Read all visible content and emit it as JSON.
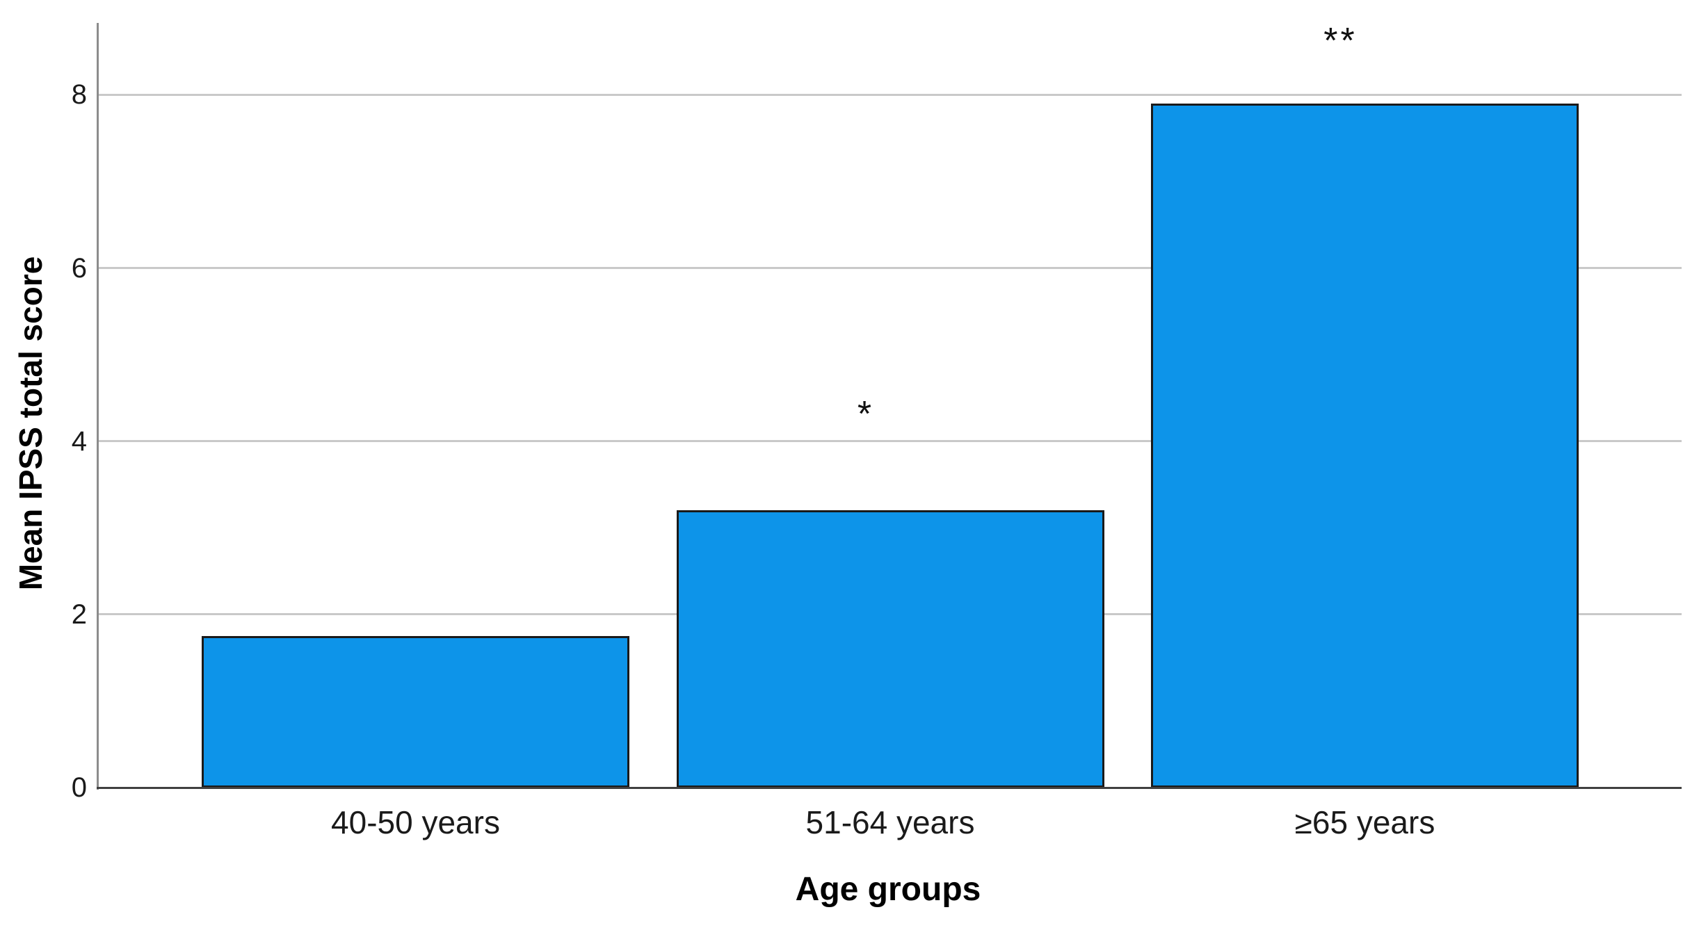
{
  "chart_data": {
    "type": "bar",
    "title": "",
    "xlabel": "Age groups",
    "ylabel": "Mean IPSS total score",
    "categories": [
      "40-50 years",
      "51-64 years",
      "≥65 years"
    ],
    "values": [
      1.75,
      3.2,
      7.9
    ],
    "yticks": [
      0,
      2,
      4,
      6,
      8
    ],
    "ylim": [
      0,
      8.83
    ],
    "grid": "horizontal-only",
    "legend": "none",
    "annotations": [
      {
        "text": "*",
        "category_index": 1,
        "y_value": 4.38
      },
      {
        "text": "**",
        "category_index": 2,
        "y_value": 8.69
      }
    ]
  },
  "colors": {
    "background": "#ffffff",
    "bar_fill": "#0d94e9",
    "bar_border": "#1a1a1a",
    "gridline": "#c9c9c9",
    "y_axis_line": "#8c8c8c",
    "x_axis_line": "#404040",
    "label_text": "#1a1a1a"
  }
}
